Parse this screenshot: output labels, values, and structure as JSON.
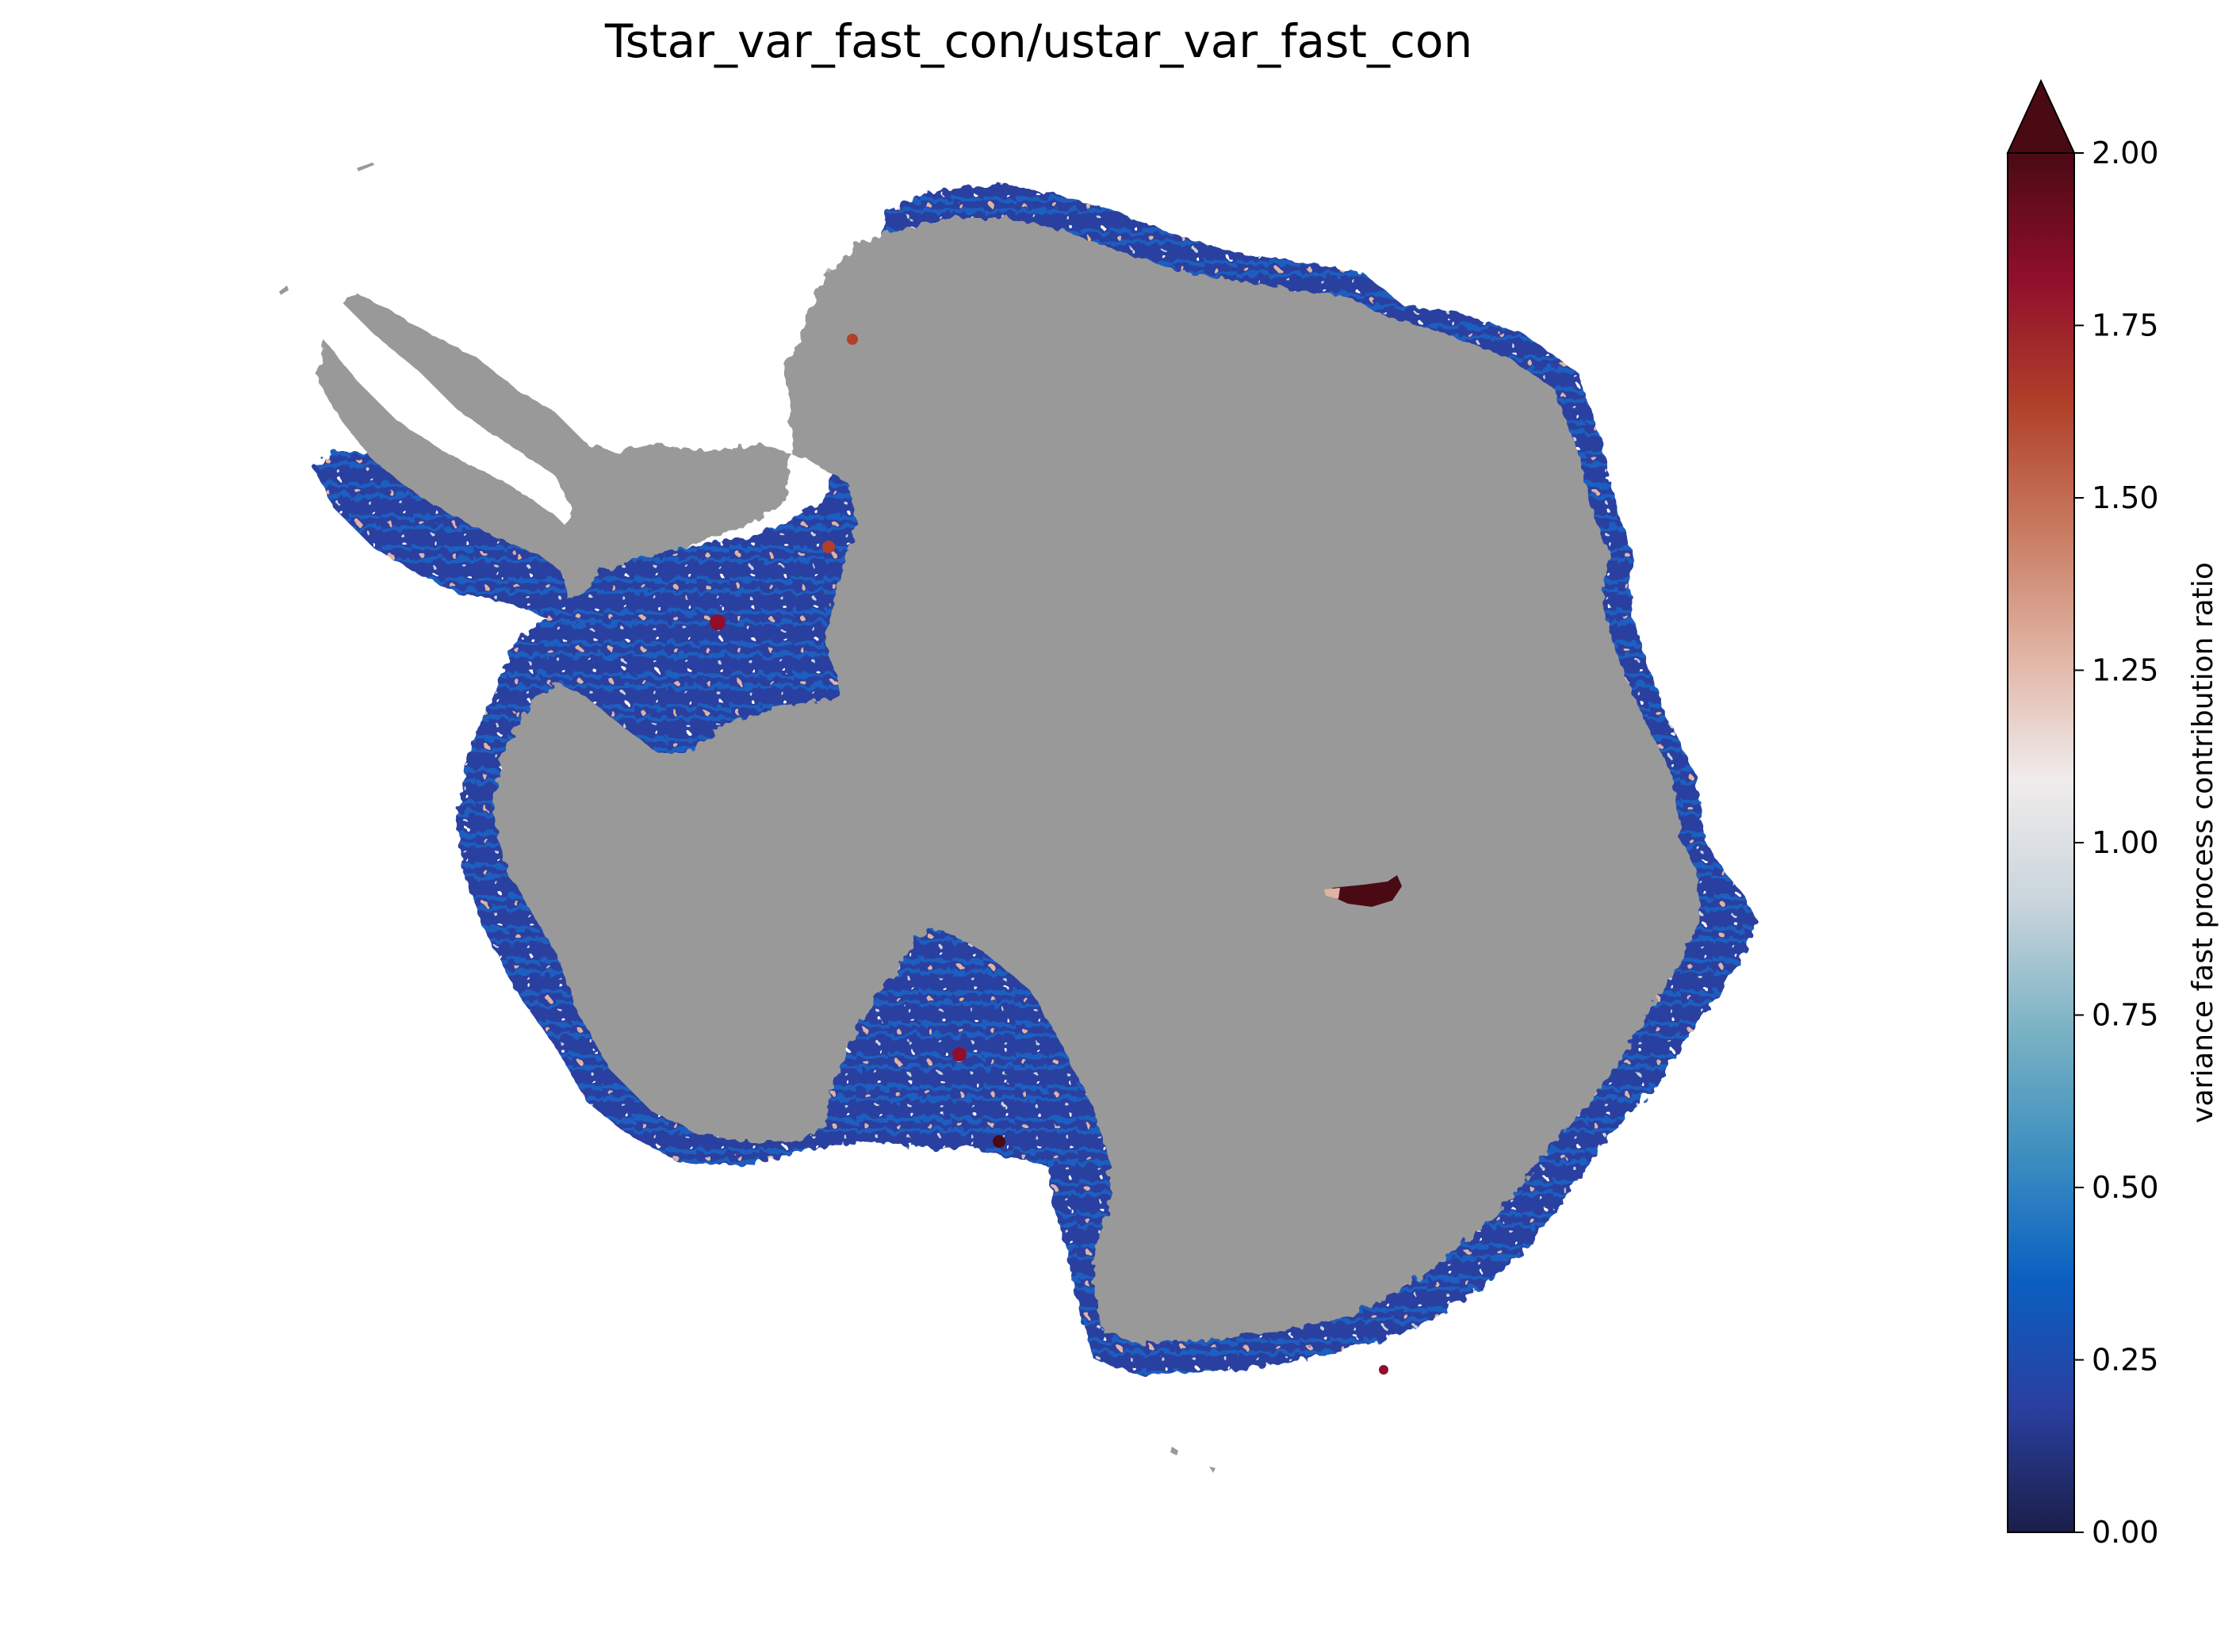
{
  "title": "Tstar_var_fast_con/ustar_var_fast_con",
  "colorbar": {
    "label": "variance fast process contribution ratio",
    "min": 0.0,
    "max": 2.0,
    "extend": "max",
    "ticks": [
      "0.00",
      "0.25",
      "0.50",
      "0.75",
      "1.00",
      "1.25",
      "1.50",
      "1.75",
      "2.00"
    ],
    "colormap_stops": [
      "#1a1f48",
      "#2a3fa0",
      "#0a5fc0",
      "#3c8ec0",
      "#7ab2c4",
      "#c8d4dc",
      "#f0ecec",
      "#e0b4a4",
      "#c87a60",
      "#b0402a",
      "#900e2c",
      "#4a0a14"
    ]
  },
  "map": {
    "continent_color": "#999999",
    "background_color": "#ffffff",
    "shelf_color_dominant": "#2a3fa0",
    "high_ratio_patch_color": "#4a0a14"
  }
}
